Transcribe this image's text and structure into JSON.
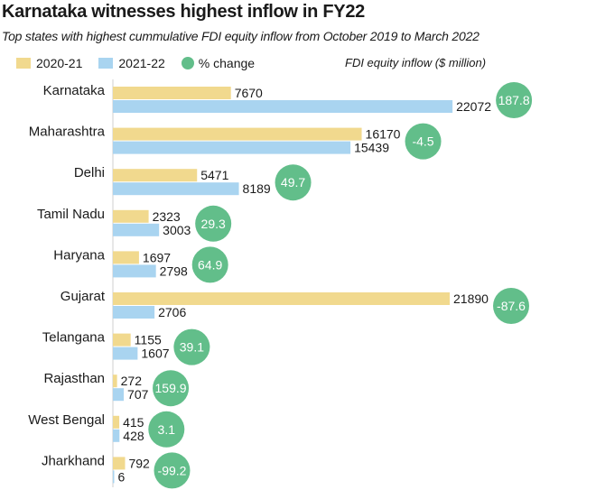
{
  "title": "Karnataka witnesses highest inflow in FY22",
  "subtitle": "Top states with highest cummulative FDI equity inflow from October 2019 to March 2022",
  "unit_note": "FDI equity inflow ($ million)",
  "colors": {
    "fy21": "#f1d98e",
    "fy22": "#a9d4f0",
    "change": "#62be8a"
  },
  "chart_data": {
    "type": "bar",
    "orientation": "horizontal",
    "title": "Karnataka witnesses highest inflow in FY22",
    "subtitle": "Top states with highest cummulative FDI equity inflow from October 2019 to March 2022",
    "categories": [
      "Karnataka",
      "Maharashtra",
      "Delhi",
      "Tamil Nadu",
      "Haryana",
      "Gujarat",
      "Telangana",
      "Rajasthan",
      "West Bengal",
      "Jharkhand"
    ],
    "series": [
      {
        "name": "2020-21",
        "values": [
          7670,
          16170,
          5471,
          2323,
          1697,
          21890,
          1155,
          272,
          415,
          792
        ]
      },
      {
        "name": "2021-22",
        "values": [
          22072,
          15439,
          8189,
          3003,
          2798,
          2706,
          1607,
          707,
          428,
          6
        ]
      }
    ],
    "pct_change": {
      "name": "% change",
      "values": [
        "187.8",
        "-4.5",
        "49.7",
        "29.3",
        "64.9",
        "-87.6",
        "39.1",
        "159.9",
        "3.1",
        "-99.2"
      ]
    },
    "legend_position": "top-left",
    "grid": false
  }
}
